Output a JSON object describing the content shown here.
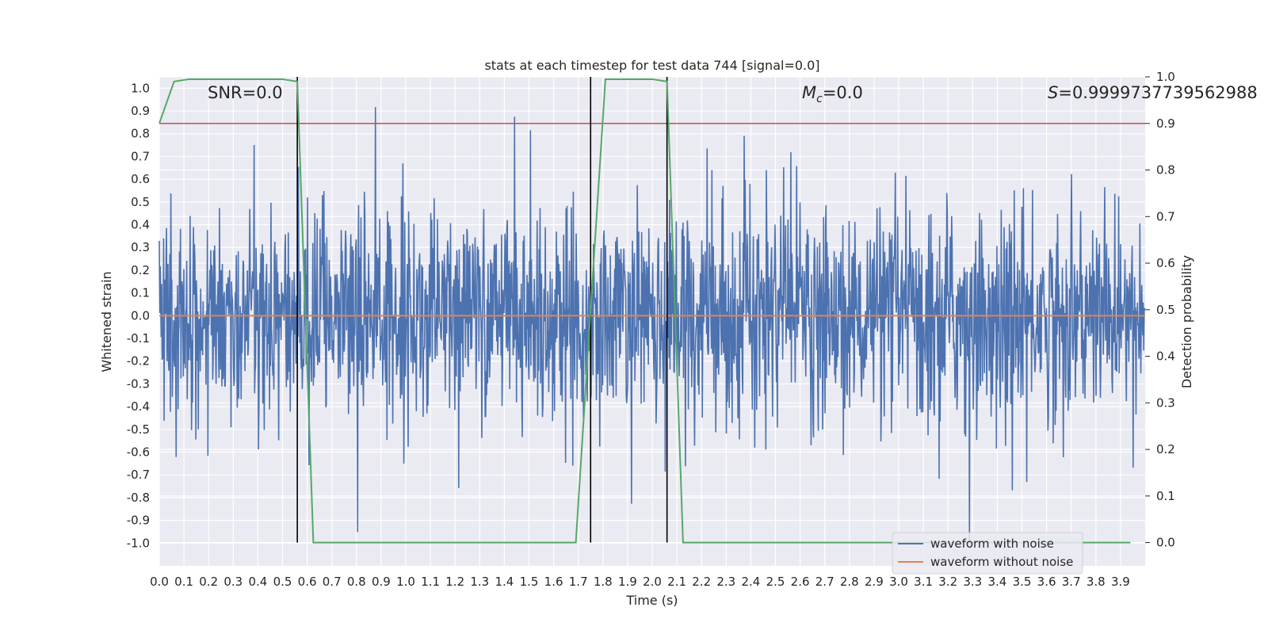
{
  "colors": {
    "background": "#ffffff",
    "axes_face": "#eaeaf2",
    "grid": "#ffffff",
    "noisy": "#4c72b0",
    "clean": "#dd8452",
    "prob": "#55a868",
    "threshold": "#c44e52",
    "markers": "#000000"
  },
  "chart_data": {
    "type": "line",
    "title": "stats at each timestep for test data 744 [signal=0.0]",
    "xlabel": "Time (s)",
    "ylabel_left": "Whitened strain",
    "ylabel_right": "Detection probability",
    "xlim": [
      0.0,
      4.0
    ],
    "ylim_left": [
      -1.1,
      1.05
    ],
    "ylim_right": [
      -0.05,
      1.0
    ],
    "x_ticks": [
      "0.0",
      "0.1",
      "0.2",
      "0.3",
      "0.4",
      "0.5",
      "0.6",
      "0.7",
      "0.8",
      "0.9",
      "1.0",
      "1.1",
      "1.2",
      "1.3",
      "1.4",
      "1.5",
      "1.6",
      "1.7",
      "1.8",
      "1.9",
      "2.0",
      "2.1",
      "2.2",
      "2.3",
      "2.4",
      "2.5",
      "2.6",
      "2.7",
      "2.8",
      "2.9",
      "3.0",
      "3.1",
      "3.2",
      "3.3",
      "3.4",
      "3.5",
      "3.6",
      "3.7",
      "3.8",
      "3.9"
    ],
    "y_ticks_left": [
      "1.0",
      "0.9",
      "0.8",
      "0.7",
      "0.6",
      "0.5",
      "0.4",
      "0.3",
      "0.2",
      "0.1",
      "0.0",
      "-0.1",
      "-0.2",
      "-0.3",
      "-0.4",
      "-0.5",
      "-0.6",
      "-0.7",
      "-0.8",
      "-0.9",
      "-1.0"
    ],
    "y_ticks_right": [
      "1.0",
      "0.9",
      "0.8",
      "0.7",
      "0.6",
      "0.5",
      "0.4",
      "0.3",
      "0.2",
      "0.1",
      "0.0"
    ],
    "annotations": {
      "snr": "SNR=0.0",
      "mc_symbol": "M",
      "mc_sub": "c",
      "mc_value": "=0.0",
      "s_symbol": "S",
      "s_value": "=0.9999737739562988"
    },
    "threshold_probability": 0.9,
    "clean_waveform_value": 0.0,
    "detection_markers_x": [
      0.56,
      1.75,
      2.06
    ],
    "noisy_waveform": {
      "description_note": "dense noisy strain, approx gaussian std 0.22, clipped to [-1, 1]",
      "n_samples": 2048,
      "std": 0.22
    },
    "probability_series": {
      "x": [
        0.0,
        0.06,
        0.12,
        0.2,
        0.3,
        0.4,
        0.5,
        0.56,
        0.625,
        0.7,
        1.0,
        1.3,
        1.6,
        1.69,
        1.75,
        1.81,
        1.9,
        2.0,
        2.06,
        2.125,
        2.2,
        2.5,
        3.0,
        3.5,
        3.94
      ],
      "y": [
        0.9,
        0.99,
        0.995,
        0.995,
        0.995,
        0.995,
        0.995,
        0.99,
        0.0,
        0.0,
        0.0,
        0.0,
        0.0,
        0.0,
        0.5,
        0.995,
        0.995,
        0.995,
        0.99,
        0.0,
        0.0,
        0.0,
        0.0,
        0.0,
        0.0
      ]
    },
    "legend": {
      "position": "lower-right",
      "entries": [
        {
          "label": "waveform with noise",
          "color": "#4c72b0"
        },
        {
          "label": "waveform without noise",
          "color": "#dd8452"
        }
      ]
    }
  }
}
